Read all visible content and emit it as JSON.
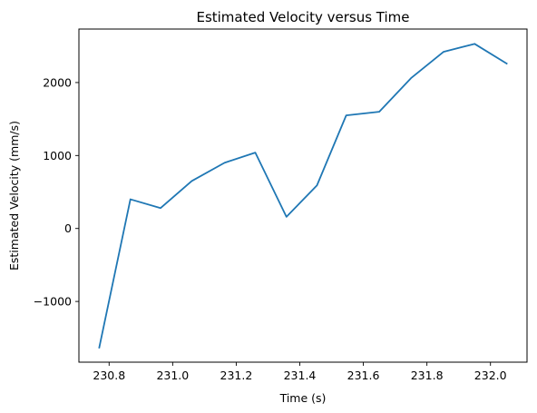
{
  "chart_data": {
    "type": "line",
    "title": "Estimated Velocity versus Time",
    "xlabel": "Time (s)",
    "ylabel": "Estimated Velocity (mm/s)",
    "xlim": [
      230.705,
      232.115
    ],
    "ylim": [
      -1832,
      2733
    ],
    "xticks": [
      230.8,
      231.0,
      231.2,
      231.4,
      231.6,
      231.8,
      232.0
    ],
    "xtick_labels": [
      "230.8",
      "231.0",
      "231.2",
      "231.4",
      "231.6",
      "231.8",
      "232.0"
    ],
    "yticks": [
      -1000,
      0,
      1000,
      2000
    ],
    "ytick_labels": [
      "−1000",
      "0",
      "1000",
      "2000"
    ],
    "grid": false,
    "series": [
      {
        "color": "#1f77b4",
        "x": [
          230.769,
          230.867,
          230.962,
          231.06,
          231.163,
          231.26,
          231.358,
          231.454,
          231.546,
          231.65,
          231.75,
          231.852,
          231.95,
          232.051
        ],
        "y": [
          -1632,
          400,
          280,
          650,
          900,
          1040,
          160,
          590,
          1550,
          1600,
          2060,
          2420,
          2530,
          2260
        ]
      }
    ]
  }
}
